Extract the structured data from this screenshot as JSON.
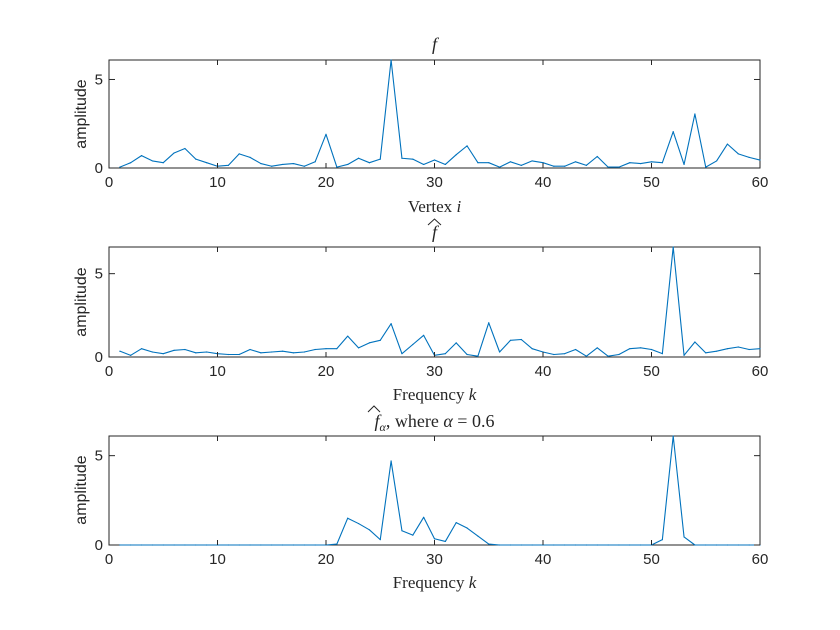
{
  "chart_data": [
    {
      "type": "line",
      "title": "f",
      "xlabel": "Vertex i",
      "ylabel": "amplitude",
      "xlim": [
        0,
        60
      ],
      "ylim": [
        0,
        6.1
      ],
      "xticks": [
        0,
        10,
        20,
        30,
        40,
        50,
        60
      ],
      "yticks": [
        0,
        5
      ],
      "grid": false,
      "color": "#0072BD",
      "x": [
        1,
        2,
        3,
        4,
        5,
        6,
        7,
        8,
        9,
        10,
        11,
        12,
        13,
        14,
        15,
        16,
        17,
        18,
        19,
        20,
        21,
        22,
        23,
        24,
        25,
        26,
        27,
        28,
        29,
        30,
        31,
        32,
        33,
        34,
        35,
        36,
        37,
        38,
        39,
        40,
        41,
        42,
        43,
        44,
        45,
        46,
        47,
        48,
        49,
        50,
        51,
        52,
        53,
        54,
        55,
        56,
        57,
        58,
        59,
        60
      ],
      "y": [
        0.05,
        0.3,
        0.7,
        0.4,
        0.3,
        0.85,
        1.1,
        0.5,
        0.3,
        0.1,
        0.15,
        0.8,
        0.6,
        0.25,
        0.1,
        0.2,
        0.25,
        0.1,
        0.35,
        1.9,
        0.05,
        0.2,
        0.55,
        0.3,
        0.5,
        6.1,
        0.55,
        0.5,
        0.2,
        0.45,
        0.2,
        0.75,
        1.25,
        0.3,
        0.3,
        0.05,
        0.35,
        0.15,
        0.4,
        0.3,
        0.1,
        0.1,
        0.35,
        0.15,
        0.65,
        0.05,
        0.05,
        0.3,
        0.25,
        0.35,
        0.3,
        2.05,
        0.2,
        3.05,
        0.05,
        0.4,
        1.35,
        0.8,
        0.6,
        0.45
      ]
    },
    {
      "type": "line",
      "title": "f̂",
      "xlabel": "Frequency k",
      "ylabel": "amplitude",
      "xlim": [
        0,
        60
      ],
      "ylim": [
        0,
        6.6
      ],
      "xticks": [
        0,
        10,
        20,
        30,
        40,
        50,
        60
      ],
      "yticks": [
        0,
        5
      ],
      "grid": false,
      "color": "#0072BD",
      "x": [
        1,
        2,
        3,
        4,
        5,
        6,
        7,
        8,
        9,
        10,
        11,
        12,
        13,
        14,
        15,
        16,
        17,
        18,
        19,
        20,
        21,
        22,
        23,
        24,
        25,
        26,
        27,
        28,
        29,
        30,
        31,
        32,
        33,
        34,
        35,
        36,
        37,
        38,
        39,
        40,
        41,
        42,
        43,
        44,
        45,
        46,
        47,
        48,
        49,
        50,
        51,
        52,
        53,
        54,
        55,
        56,
        57,
        58,
        59,
        60
      ],
      "y": [
        0.35,
        0.1,
        0.5,
        0.3,
        0.2,
        0.4,
        0.45,
        0.25,
        0.3,
        0.2,
        0.15,
        0.15,
        0.45,
        0.25,
        0.3,
        0.35,
        0.25,
        0.3,
        0.45,
        0.5,
        0.5,
        1.25,
        0.55,
        0.85,
        1.0,
        2.0,
        0.2,
        0.75,
        1.3,
        0.1,
        0.2,
        0.85,
        0.15,
        0.05,
        2.05,
        0.3,
        1.0,
        1.05,
        0.5,
        0.3,
        0.15,
        0.2,
        0.45,
        0.05,
        0.55,
        0.05,
        0.15,
        0.5,
        0.55,
        0.45,
        0.2,
        6.6,
        0.1,
        0.9,
        0.25,
        0.35,
        0.5,
        0.6,
        0.45,
        0.5
      ]
    },
    {
      "type": "line",
      "title": "f̂_α, where α = 0.6",
      "xlabel": "Frequency k",
      "ylabel": "amplitude",
      "xlim": [
        0,
        60
      ],
      "ylim": [
        0,
        6.1
      ],
      "xticks": [
        0,
        10,
        20,
        30,
        40,
        50,
        60
      ],
      "yticks": [
        0,
        5
      ],
      "grid": false,
      "color": "#0072BD",
      "x": [
        1,
        2,
        3,
        4,
        5,
        6,
        7,
        8,
        9,
        10,
        11,
        12,
        13,
        14,
        15,
        16,
        17,
        18,
        19,
        20,
        21,
        22,
        23,
        24,
        25,
        26,
        27,
        28,
        29,
        30,
        31,
        32,
        33,
        34,
        35,
        36,
        37,
        38,
        39,
        40,
        41,
        42,
        43,
        44,
        45,
        46,
        47,
        48,
        49,
        50,
        51,
        52,
        53,
        54,
        55,
        56,
        57,
        58,
        59,
        60
      ],
      "y": [
        0,
        0,
        0,
        0,
        0,
        0,
        0,
        0,
        0,
        0,
        0,
        0,
        0,
        0,
        0,
        0,
        0,
        0,
        0,
        0,
        0.05,
        1.5,
        1.2,
        0.85,
        0.3,
        4.7,
        0.8,
        0.55,
        1.55,
        0.35,
        0.2,
        1.25,
        0.95,
        0.5,
        0.05,
        0,
        0,
        0,
        0,
        0,
        0,
        0,
        0,
        0,
        0,
        0,
        0,
        0,
        0,
        0,
        0.3,
        6.1,
        0.45,
        0,
        0,
        0,
        0,
        0,
        0,
        0
      ]
    }
  ]
}
